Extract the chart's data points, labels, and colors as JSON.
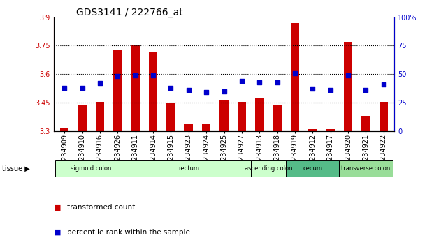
{
  "title": "GDS3141 / 222766_at",
  "samples": [
    "GSM234909",
    "GSM234910",
    "GSM234916",
    "GSM234926",
    "GSM234911",
    "GSM234914",
    "GSM234915",
    "GSM234923",
    "GSM234924",
    "GSM234925",
    "GSM234927",
    "GSM234913",
    "GSM234918",
    "GSM234919",
    "GSM234912",
    "GSM234917",
    "GSM234920",
    "GSM234921",
    "GSM234922"
  ],
  "bar_values": [
    3.315,
    3.44,
    3.455,
    3.73,
    3.75,
    3.715,
    3.45,
    3.335,
    3.335,
    3.46,
    3.455,
    3.475,
    3.44,
    3.87,
    3.31,
    3.31,
    3.77,
    3.38,
    3.455
  ],
  "percentile_values": [
    38,
    38,
    42,
    48,
    49,
    49,
    38,
    36,
    34,
    35,
    44,
    43,
    43,
    51,
    37,
    36,
    49,
    36,
    41
  ],
  "ylim_left": [
    3.3,
    3.9
  ],
  "ylim_right": [
    0,
    100
  ],
  "yticks_left": [
    3.3,
    3.45,
    3.6,
    3.75,
    3.9
  ],
  "yticks_right": [
    0,
    25,
    50,
    75,
    100
  ],
  "bar_color": "#cc0000",
  "dot_color": "#0000cc",
  "tissue_groups": [
    {
      "label": "sigmoid colon",
      "start": 0,
      "end": 3,
      "color": "#ccffcc"
    },
    {
      "label": "rectum",
      "start": 4,
      "end": 10,
      "color": "#ccffcc"
    },
    {
      "label": "ascending colon",
      "start": 11,
      "end": 12,
      "color": "#ccffcc"
    },
    {
      "label": "cecum",
      "start": 13,
      "end": 15,
      "color": "#55bb88"
    },
    {
      "label": "transverse colon",
      "start": 16,
      "end": 18,
      "color": "#99dd99"
    }
  ],
  "legend_bar_label": "transformed count",
  "legend_dot_label": "percentile rank within the sample",
  "background_color": "#ffffff",
  "title_fontsize": 10,
  "tick_fontsize": 7,
  "label_fontsize": 7,
  "bar_width": 0.5
}
